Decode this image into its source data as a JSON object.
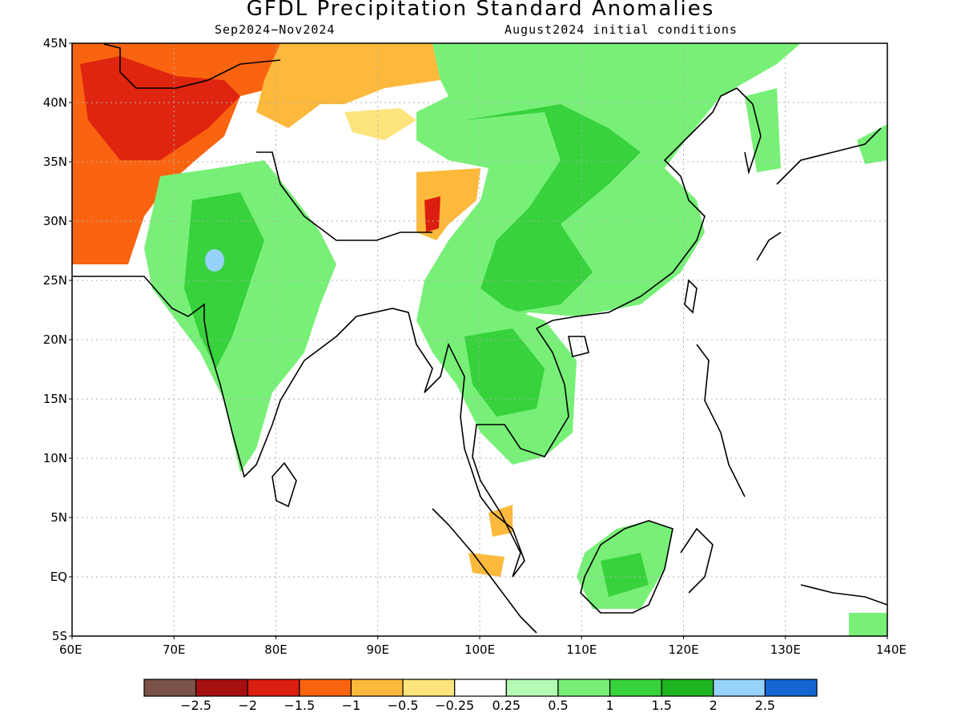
{
  "title": "GFDL Precipitation Standard Anomalies",
  "period": "Sep2024−Nov2024",
  "initial_conditions": "August2024 initial conditions",
  "lat_labels": [
    "45N",
    "40N",
    "35N",
    "30N",
    "25N",
    "20N",
    "15N",
    "10N",
    "5N",
    "EQ",
    "5S"
  ],
  "lon_labels": [
    "60E",
    "70E",
    "80E",
    "90E",
    "100E",
    "110E",
    "120E",
    "130E",
    "140E"
  ],
  "colorbar": {
    "colors": [
      "#7a5248",
      "#a50f0f",
      "#dc1e10",
      "#fa6410",
      "#fdb93c",
      "#fde47c",
      "#ffffff",
      "#b4fab4",
      "#78f078",
      "#37d23c",
      "#1eb41e",
      "#96d2fa",
      "#1464d2"
    ],
    "labels": [
      "−2.5",
      "−2",
      "−1.5",
      "−1",
      "−0.5",
      "−0.25",
      "0.25",
      "0.5",
      "1",
      "1.5",
      "2",
      "2.5"
    ]
  },
  "colors": {
    "dark_orange": "#fa6410",
    "orange": "#fdb93c",
    "yellow": "#fde47c",
    "red": "#dc1e10",
    "light_green": "#b4fab4",
    "green": "#78f078",
    "mid_green": "#37d23c",
    "dark_green": "#1eb41e",
    "light_blue": "#96d2fa"
  }
}
